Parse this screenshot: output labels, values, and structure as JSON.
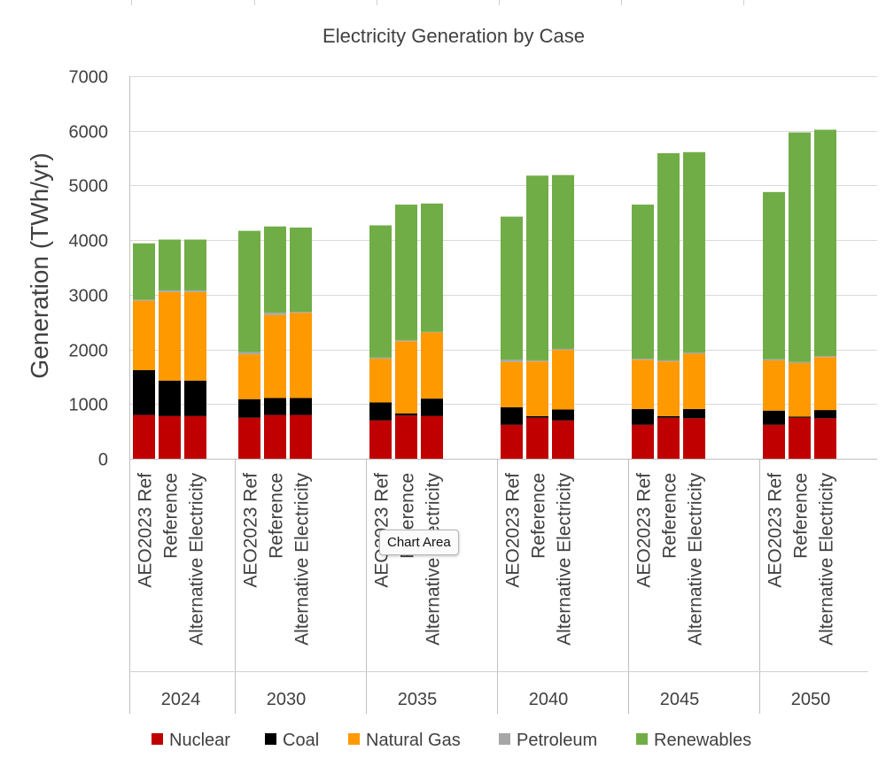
{
  "chart_data": {
    "type": "bar",
    "stacked": true,
    "title": "Electricity Generation by Case",
    "ylabel": "Generation (TWh/yr)",
    "xlabel": "",
    "ylim": [
      0,
      7000
    ],
    "yticks": [
      "0",
      "1000",
      "2000",
      "3000",
      "4000",
      "5000",
      "6000",
      "7000"
    ],
    "grid": true,
    "legend_position": "bottom",
    "groups": [
      "2024",
      "2030",
      "2035",
      "2040",
      "2045",
      "2050"
    ],
    "cases": [
      "AEO2023 Ref",
      "Reference",
      "Alternative Electricity"
    ],
    "categories": [
      "2024 AEO2023 Ref",
      "2024 Reference",
      "2024 Alternative Electricity",
      "2030 AEO2023 Ref",
      "2030 Reference",
      "2030 Alternative Electricity",
      "2035 AEO2023 Ref",
      "2035 Reference",
      "2035 Alternative Electricity",
      "2040 AEO2023 Ref",
      "2040 Reference",
      "2040 Alternative Electricity",
      "2045 AEO2023 Ref",
      "2045 Reference",
      "2045 Alternative Electricity",
      "2050 AEO2023 Ref",
      "2050 Reference",
      "2050 Alternative Electricity"
    ],
    "series": [
      {
        "name": "Nuclear",
        "color": "#c00000",
        "values": [
          800,
          780,
          780,
          750,
          800,
          800,
          700,
          790,
          780,
          620,
          750,
          700,
          620,
          750,
          740,
          620,
          750,
          740
        ]
      },
      {
        "name": "Coal",
        "color": "#000000",
        "values": [
          820,
          650,
          650,
          340,
          310,
          310,
          330,
          40,
          320,
          320,
          30,
          200,
          290,
          30,
          170,
          260,
          20,
          150
        ]
      },
      {
        "name": "Natural Gas",
        "color": "#ff9900",
        "values": [
          1270,
          1620,
          1620,
          820,
          1520,
          1560,
          800,
          1320,
          1210,
          830,
          1000,
          1090,
          900,
          1000,
          1010,
          920,
          980,
          970
        ]
      },
      {
        "name": "Petroleum",
        "color": "#a6a6a6",
        "values": [
          20,
          30,
          30,
          40,
          40,
          20,
          20,
          20,
          10,
          40,
          20,
          20,
          20,
          20,
          20,
          20,
          20,
          20
        ]
      },
      {
        "name": "Renewables",
        "color": "#70ad47",
        "values": [
          1030,
          930,
          930,
          2220,
          1580,
          1540,
          2420,
          2480,
          2350,
          2620,
          3380,
          3180,
          2820,
          3790,
          3670,
          3060,
          4200,
          4140
        ]
      }
    ]
  },
  "tooltip": {
    "label": "Chart Area"
  }
}
